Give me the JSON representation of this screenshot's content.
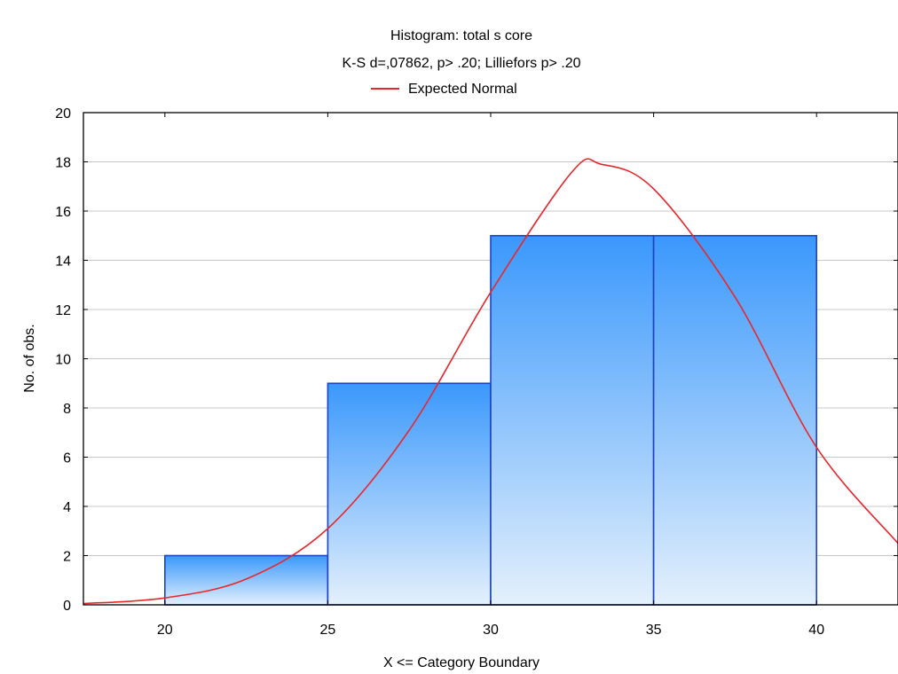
{
  "chart_data": {
    "type": "bar",
    "title": "Histogram: total s core",
    "subtitle": "K-S d=,07862, p> .20; Lilliefors p> .20",
    "xlabel": "X <= Category Boundary",
    "ylabel": "No. of obs.",
    "xlim": [
      17.5,
      42.5
    ],
    "ylim": [
      0,
      20
    ],
    "x_ticks": [
      20,
      25,
      30,
      35,
      40
    ],
    "y_ticks": [
      0,
      2,
      4,
      6,
      8,
      10,
      12,
      14,
      16,
      18,
      20
    ],
    "grid": true,
    "legend_position": "top-center",
    "bins": [
      {
        "from": 20,
        "to": 25,
        "count": 2
      },
      {
        "from": 25,
        "to": 30,
        "count": 9
      },
      {
        "from": 30,
        "to": 35,
        "count": 15
      },
      {
        "from": 35,
        "to": 40,
        "count": 15
      }
    ],
    "series": [
      {
        "name": "Expected Normal",
        "type": "line",
        "color": "#e8272c",
        "x": [
          17.5,
          20,
          22.5,
          25,
          27.5,
          30,
          32.5,
          33.4,
          35,
          37.5,
          40,
          42.5
        ],
        "y": [
          0.05,
          0.28,
          1.05,
          3.1,
          7.1,
          12.7,
          17.6,
          17.9,
          16.9,
          12.5,
          6.4,
          2.5
        ]
      }
    ],
    "colors": {
      "bar_top": "#3a98fc",
      "bar_bottom": "#e4f0fc",
      "bar_border": "#1d43c0",
      "grid": "#c8c8c8",
      "curve": "#e8272c"
    }
  }
}
